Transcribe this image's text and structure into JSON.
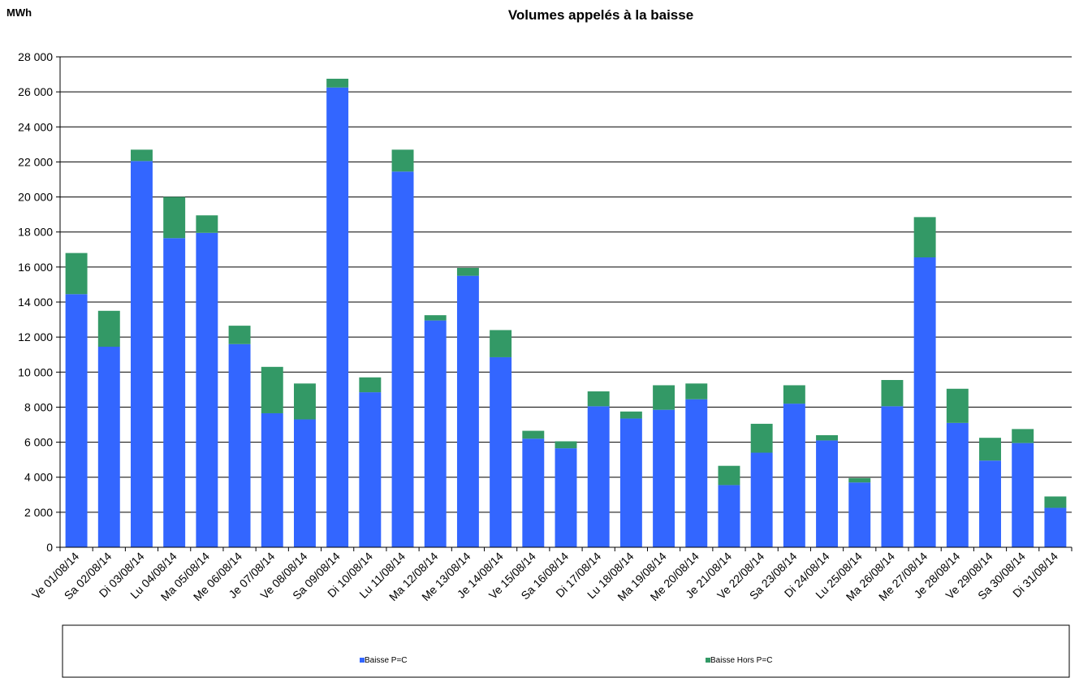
{
  "chart_data": {
    "type": "bar",
    "stacked": true,
    "title": "Volumes appelés à la baisse",
    "unit_label": "MWh",
    "categories": [
      "Ve 01/08/14",
      "Sa 02/08/14",
      "Di 03/08/14",
      "Lu 04/08/14",
      "Ma 05/08/14",
      "Me 06/08/14",
      "Je 07/08/14",
      "Ve 08/08/14",
      "Sa 09/08/14",
      "Di 10/08/14",
      "Lu 11/08/14",
      "Ma 12/08/14",
      "Me 13/08/14",
      "Je 14/08/14",
      "Ve 15/08/14",
      "Sa 16/08/14",
      "Di 17/08/14",
      "Lu 18/08/14",
      "Ma 19/08/14",
      "Me 20/08/14",
      "Je 21/08/14",
      "Ve 22/08/14",
      "Sa 23/08/14",
      "Di 24/08/14",
      "Lu 25/08/14",
      "Ma 26/08/14",
      "Me 27/08/14",
      "Je 28/08/14",
      "Ve 29/08/14",
      "Sa 30/08/14",
      "Di 31/08/14"
    ],
    "series": [
      {
        "name": "Baisse P=C",
        "color": "#3366ff",
        "values": [
          14450,
          11450,
          22050,
          17650,
          17950,
          11600,
          7650,
          7300,
          26250,
          8850,
          21450,
          12950,
          15500,
          10850,
          6200,
          5650,
          8050,
          7350,
          7850,
          8450,
          3550,
          5400,
          8200,
          6100,
          3700,
          8050,
          16550,
          7100,
          4950,
          5950,
          2250
        ]
      },
      {
        "name": "Baisse Hors P=C",
        "color": "#339966",
        "values": [
          2350,
          2050,
          650,
          2350,
          1000,
          1050,
          2650,
          2050,
          500,
          850,
          1250,
          300,
          450,
          1550,
          450,
          400,
          850,
          400,
          1400,
          900,
          1100,
          1650,
          1050,
          300,
          250,
          1500,
          2300,
          1950,
          1300,
          800,
          650
        ]
      }
    ],
    "ylim": [
      0,
      28000
    ],
    "yticks": [
      "0",
      "2 000",
      "4 000",
      "6 000",
      "8 000",
      "10 000",
      "12 000",
      "14 000",
      "16 000",
      "18 000",
      "20 000",
      "22 000",
      "24 000",
      "26 000",
      "28 000"
    ],
    "ytick_step": 2000,
    "grid": true,
    "legend_position": "bottom"
  }
}
